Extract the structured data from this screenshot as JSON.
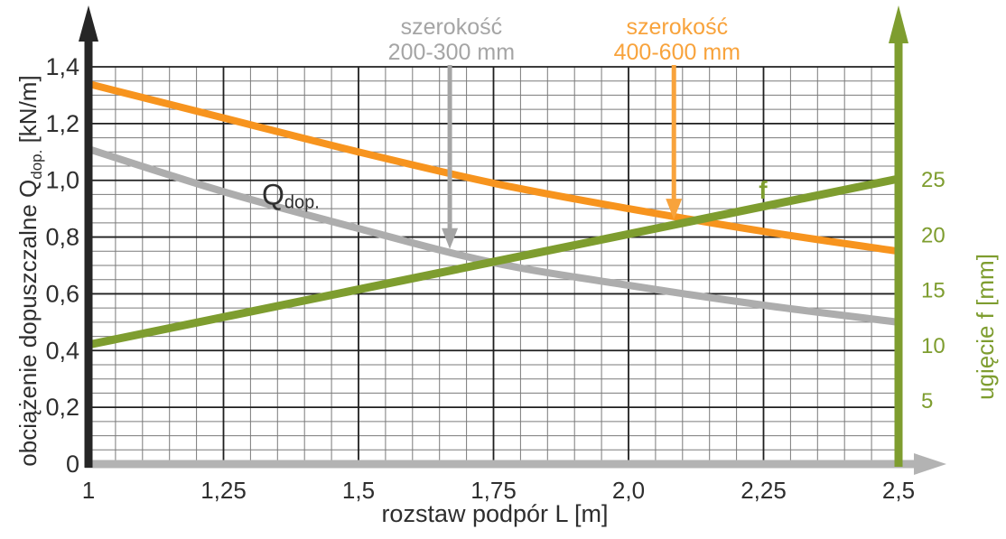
{
  "chart_data": {
    "type": "line",
    "title": "",
    "xlabel": "rozstaw podpór L [m]",
    "ylabel_left": {
      "prefix": "obciążenie dopuszczalne Q",
      "sub": "dop.",
      "suffix": " [kN/m]"
    },
    "ylabel_right": "ugięcie f [mm]",
    "xlim": [
      1,
      2.5
    ],
    "ylim_left": [
      0,
      1.4
    ],
    "grid": {
      "on": true,
      "minor_step_x": 0.05,
      "minor_step_y": 0.05,
      "major_step_x": 0.25,
      "major_step_y": 0.2
    },
    "x_ticks": [
      {
        "v": 1.0,
        "label": "1"
      },
      {
        "v": 1.25,
        "label": "1,25"
      },
      {
        "v": 1.5,
        "label": "1,5"
      },
      {
        "v": 1.75,
        "label": "1,75"
      },
      {
        "v": 2.0,
        "label": "2,0"
      },
      {
        "v": 2.25,
        "label": "2,25"
      },
      {
        "v": 2.5,
        "label": "2,5"
      }
    ],
    "y_ticks_left": [
      {
        "v": 0.0,
        "label": "0"
      },
      {
        "v": 0.2,
        "label": "0,2"
      },
      {
        "v": 0.4,
        "label": "0,4"
      },
      {
        "v": 0.6,
        "label": "0,6"
      },
      {
        "v": 0.8,
        "label": "0,8"
      },
      {
        "v": 1.0,
        "label": "1,0"
      },
      {
        "v": 1.2,
        "label": "1,2"
      },
      {
        "v": 1.4,
        "label": "1,4"
      }
    ],
    "y_ticks_right": [
      {
        "f": 5,
        "label": "5"
      },
      {
        "f": 10,
        "label": "10"
      },
      {
        "f": 15,
        "label": "15"
      },
      {
        "f": 20,
        "label": "20"
      },
      {
        "f": 25,
        "label": "25"
      }
    ],
    "series": [
      {
        "id": "q-width-400-600",
        "name": "szerokość 400-600 mm",
        "axis": "left",
        "color": "#F7941E",
        "width": 8,
        "x": [
          1.0,
          1.25,
          1.5,
          1.75,
          2.0,
          2.25,
          2.5
        ],
        "values": [
          1.34,
          1.22,
          1.1,
          0.99,
          0.9,
          0.82,
          0.75
        ]
      },
      {
        "id": "q-width-200-300",
        "name": "szerokość 200-300 mm",
        "axis": "left",
        "color": "#ADADAD",
        "width": 8,
        "x": [
          1.0,
          1.25,
          1.5,
          1.75,
          2.0,
          2.25,
          2.5
        ],
        "values": [
          1.11,
          0.96,
          0.83,
          0.71,
          0.63,
          0.56,
          0.5
        ]
      },
      {
        "id": "f-deflection",
        "name": "f",
        "axis": "right",
        "color": "#7E9D2F",
        "width": 9,
        "x": [
          1.0,
          2.5
        ],
        "values": [
          10,
          25
        ]
      }
    ],
    "annotations": {
      "gray_callout": {
        "line1": "szerokość",
        "line2": "200-300 mm",
        "color": "#A5A5A5",
        "tip_L": 1.669,
        "tip_v": 0.758,
        "text_x_L": 1.672
      },
      "orange_callout": {
        "line1": "szerokość",
        "line2": "400-600 mm",
        "color": "#F8A33C",
        "tip_L": 2.084,
        "tip_v": 0.862,
        "text_x_L": 2.09
      },
      "qdop_label": {
        "main": "Q",
        "sub": "dop.",
        "L": 1.321,
        "v": 0.915
      },
      "f_label": {
        "text": "f",
        "L": 2.249,
        "v": 0.935
      }
    },
    "colors": {
      "axis_left": "#262626",
      "axis_x": "#B3B3B3",
      "axis_right": "#7E9D2F",
      "grid_minor": "#7A7A7A",
      "grid_major": "#1F1F1F",
      "tick_text": "#2E2E2E",
      "right_tick_text": "#7E9D2F"
    }
  }
}
